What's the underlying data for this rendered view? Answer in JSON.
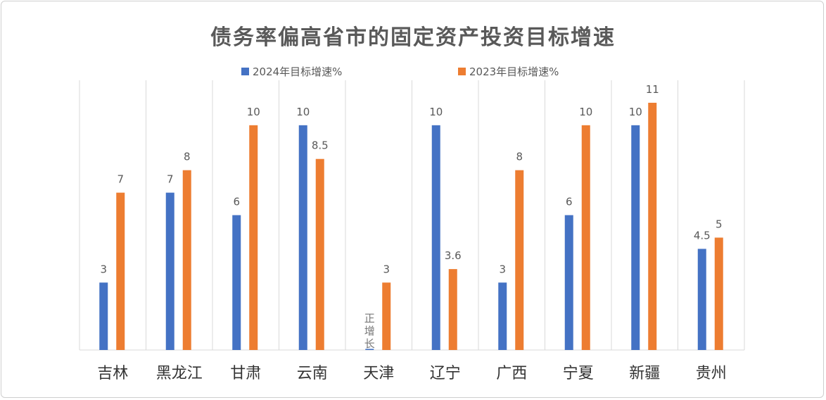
{
  "chart_data": {
    "type": "bar",
    "title": "债务率偏高省市的固定资产投资目标增速",
    "categories": [
      "吉林",
      "黑龙江",
      "甘肃",
      "云南",
      "天津",
      "辽宁",
      "广西",
      "宁夏",
      "新疆",
      "贵州"
    ],
    "series": [
      {
        "name": "2024年目标增速%",
        "color": "#4472C4",
        "values": [
          3,
          7,
          6,
          10,
          0.05,
          10,
          3,
          6,
          10,
          4.5
        ],
        "labels": [
          "3",
          "7",
          "6",
          "10",
          "正增长",
          "10",
          "3",
          "6",
          "10",
          "4.5"
        ]
      },
      {
        "name": "2023年目标增速%",
        "color": "#ED7D31",
        "values": [
          7,
          8,
          10,
          8.5,
          3,
          3.6,
          8,
          10,
          11,
          5
        ],
        "labels": [
          "7",
          "8",
          "10",
          "8.5",
          "3",
          "3.6",
          "8",
          "10",
          "11",
          "5"
        ]
      }
    ],
    "xlabel": "",
    "ylabel": "",
    "ylim": [
      0,
      12
    ],
    "grid": "vertical category separators",
    "legend": "top-center"
  }
}
